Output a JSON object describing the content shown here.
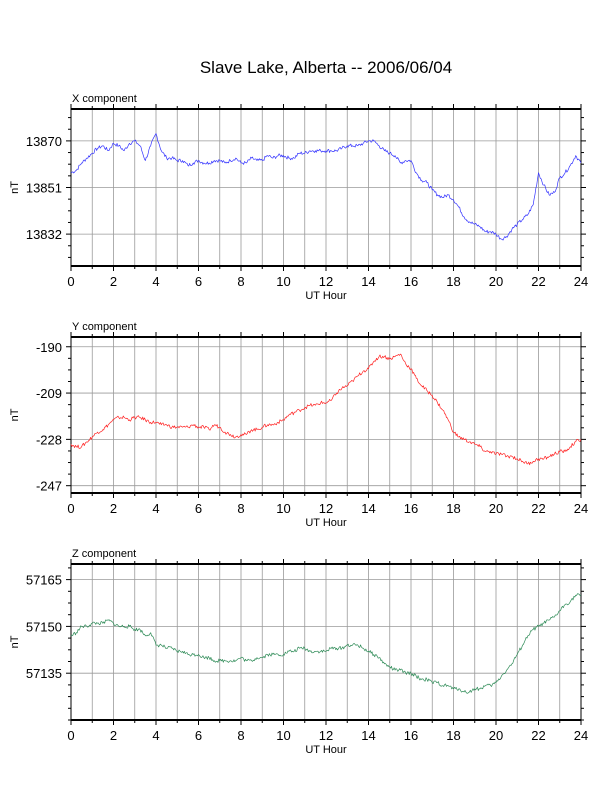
{
  "title": "Slave Lake, Alberta -- 2006/06/04",
  "chart_data": [
    {
      "type": "line",
      "title": "X component",
      "xlabel": "UT Hour",
      "ylabel": "nT",
      "xlim": [
        0,
        24
      ],
      "ylim": [
        13819,
        13883
      ],
      "xticks": [
        0,
        2,
        4,
        6,
        8,
        10,
        12,
        14,
        16,
        18,
        20,
        22,
        24
      ],
      "yticks": [
        13832,
        13851,
        13870
      ],
      "ytick_labels": [
        "13832",
        "13851",
        "13870"
      ],
      "grid": true,
      "color": "#3333ff",
      "series": [
        {
          "x": [
            0,
            0.25,
            0.5,
            0.75,
            1,
            1.25,
            1.5,
            1.75,
            2,
            2.25,
            2.5,
            2.75,
            3,
            3.25,
            3.5,
            3.75,
            4,
            4.25,
            4.5,
            4.75,
            5,
            5.25,
            5.5,
            5.75,
            6,
            6.25,
            6.5,
            6.75,
            7,
            7.25,
            7.5,
            7.75,
            8,
            8.25,
            8.5,
            8.75,
            9,
            9.25,
            9.5,
            9.75,
            10,
            10.25,
            10.5,
            10.75,
            11,
            11.25,
            11.5,
            11.75,
            12,
            12.25,
            12.5,
            12.75,
            13,
            13.25,
            13.5,
            13.75,
            14,
            14.25,
            14.5,
            14.75,
            15,
            15.25,
            15.5,
            15.75,
            16,
            16.25,
            16.5,
            16.75,
            17,
            17.25,
            17.5,
            17.75,
            18,
            18.25,
            18.5,
            18.75,
            19,
            19.25,
            19.5,
            19.75,
            20,
            20.25,
            20.5,
            20.75,
            21,
            21.25,
            21.5,
            21.75,
            22,
            22.25,
            22.5,
            22.75,
            23,
            23.25,
            23.5,
            23.75,
            24
          ],
          "y": [
            13857,
            13858,
            13861,
            13863,
            13865,
            13867,
            13868,
            13866,
            13869,
            13868,
            13866,
            13869,
            13870,
            13868,
            13862,
            13868,
            13873,
            13866,
            13863,
            13863,
            13862,
            13862,
            13860,
            13861,
            13862,
            13861,
            13861,
            13862,
            13862,
            13861,
            13862,
            13863,
            13861,
            13861,
            13863,
            13862,
            13862,
            13864,
            13863,
            13864,
            13864,
            13863,
            13863,
            13865,
            13865,
            13866,
            13866,
            13866,
            13866,
            13866,
            13866,
            13867,
            13868,
            13868,
            13868,
            13869,
            13870,
            13870,
            13868,
            13866,
            13865,
            13864,
            13861,
            13862,
            13862,
            13857,
            13854,
            13853,
            13850,
            13848,
            13847,
            13848,
            13846,
            13843,
            13839,
            13837,
            13836,
            13835,
            13833,
            13833,
            13832,
            13830,
            13831,
            13834,
            13836,
            13838,
            13840,
            13844,
            13857,
            13852,
            13848,
            13849,
            13855,
            13857,
            13860,
            13864,
            13861
          ]
        }
      ]
    },
    {
      "type": "line",
      "title": "Y component",
      "xlabel": "UT Hour",
      "ylabel": "nT",
      "xlim": [
        0,
        24
      ],
      "ylim": [
        -250,
        -186
      ],
      "xticks": [
        0,
        2,
        4,
        6,
        8,
        10,
        12,
        14,
        16,
        18,
        20,
        22,
        24
      ],
      "yticks": [
        -247,
        -228,
        -209,
        -190
      ],
      "ytick_labels": [
        "-247",
        "-228",
        "-209",
        "-190"
      ],
      "grid": true,
      "color": "#ff2020",
      "series": [
        {
          "x": [
            0,
            0.25,
            0.5,
            0.75,
            1,
            1.25,
            1.5,
            1.75,
            2,
            2.25,
            2.5,
            2.75,
            3,
            3.25,
            3.5,
            3.75,
            4,
            4.25,
            4.5,
            4.75,
            5,
            5.25,
            5.5,
            5.75,
            6,
            6.25,
            6.5,
            6.75,
            7,
            7.25,
            7.5,
            7.75,
            8,
            8.25,
            8.5,
            8.75,
            9,
            9.25,
            9.5,
            9.75,
            10,
            10.25,
            10.5,
            10.75,
            11,
            11.25,
            11.5,
            11.75,
            12,
            12.25,
            12.5,
            12.75,
            13,
            13.25,
            13.5,
            13.75,
            14,
            14.25,
            14.5,
            14.75,
            15,
            15.25,
            15.5,
            15.75,
            16,
            16.25,
            16.5,
            16.75,
            17,
            17.25,
            17.5,
            17.75,
            18,
            18.25,
            18.5,
            18.75,
            19,
            19.25,
            19.5,
            19.75,
            20,
            20.25,
            20.5,
            20.75,
            21,
            21.25,
            21.5,
            21.75,
            22,
            22.25,
            22.5,
            22.75,
            23,
            23.25,
            23.5,
            23.75,
            24
          ],
          "y": [
            -230,
            -231,
            -231,
            -229,
            -227,
            -225,
            -224,
            -222,
            -220,
            -219,
            -219,
            -220,
            -219,
            -219,
            -220,
            -221,
            -221,
            -222,
            -222,
            -223,
            -223,
            -223,
            -223,
            -222,
            -223,
            -223,
            -224,
            -222,
            -223,
            -225,
            -226,
            -227,
            -226,
            -226,
            -224,
            -224,
            -223,
            -222,
            -222,
            -221,
            -220,
            -218,
            -217,
            -216,
            -215,
            -214,
            -214,
            -213,
            -213,
            -212,
            -209,
            -207,
            -206,
            -204,
            -202,
            -200,
            -199,
            -196,
            -194,
            -194,
            -195,
            -194,
            -193,
            -197,
            -199,
            -203,
            -206,
            -208,
            -210,
            -213,
            -216,
            -220,
            -225,
            -227,
            -228,
            -229,
            -230,
            -231,
            -233,
            -233,
            -234,
            -234,
            -235,
            -235,
            -236,
            -237,
            -238,
            -237,
            -236,
            -236,
            -235,
            -234,
            -233,
            -233,
            -231,
            -229,
            -228
          ]
        }
      ]
    },
    {
      "type": "line",
      "title": "Z component",
      "xlabel": "UT Hour",
      "ylabel": "nT",
      "xlim": [
        0,
        24
      ],
      "ylim": [
        57120,
        57170
      ],
      "xticks": [
        0,
        2,
        4,
        6,
        8,
        10,
        12,
        14,
        16,
        18,
        20,
        22,
        24
      ],
      "yticks": [
        57135,
        57150,
        57165
      ],
      "ytick_labels": [
        "57135",
        "57150",
        "57165"
      ],
      "grid": true,
      "color": "#2e8b57",
      "series": [
        {
          "x": [
            0,
            0.25,
            0.5,
            0.75,
            1,
            1.25,
            1.5,
            1.75,
            2,
            2.25,
            2.5,
            2.75,
            3,
            3.25,
            3.5,
            3.75,
            4,
            4.25,
            4.5,
            4.75,
            5,
            5.25,
            5.5,
            5.75,
            6,
            6.25,
            6.5,
            6.75,
            7,
            7.25,
            7.5,
            7.75,
            8,
            8.25,
            8.5,
            8.75,
            9,
            9.25,
            9.5,
            9.75,
            10,
            10.25,
            10.5,
            10.75,
            11,
            11.25,
            11.5,
            11.75,
            12,
            12.25,
            12.5,
            12.75,
            13,
            13.25,
            13.5,
            13.75,
            14,
            14.25,
            14.5,
            14.75,
            15,
            15.25,
            15.5,
            15.75,
            16,
            16.25,
            16.5,
            16.75,
            17,
            17.25,
            17.5,
            17.75,
            18,
            18.25,
            18.5,
            18.75,
            19,
            19.25,
            19.5,
            19.75,
            20,
            20.25,
            20.5,
            20.75,
            21,
            21.25,
            21.5,
            21.75,
            22,
            22.25,
            22.5,
            22.75,
            23,
            23.25,
            23.5,
            23.75,
            24
          ],
          "y": [
            57147,
            57148,
            57150,
            57150,
            57151,
            57151,
            57151,
            57152,
            57151,
            57150,
            57150,
            57150,
            57149,
            57149,
            57147,
            57148,
            57144,
            57144,
            57143,
            57143,
            57142,
            57142,
            57141,
            57141,
            57141,
            57140,
            57140,
            57139,
            57139,
            57139,
            57139,
            57139,
            57140,
            57139,
            57139,
            57140,
            57140,
            57141,
            57141,
            57141,
            57141,
            57142,
            57142,
            57143,
            57143,
            57142,
            57142,
            57142,
            57142,
            57143,
            57143,
            57143,
            57144,
            57144,
            57144,
            57143,
            57142,
            57141,
            57140,
            57138,
            57137,
            57136,
            57136,
            57135,
            57135,
            57134,
            57133,
            57133,
            57132,
            57132,
            57131,
            57131,
            57130,
            57130,
            57129,
            57129,
            57130,
            57130,
            57131,
            57131,
            57132,
            57134,
            57136,
            57138,
            57141,
            57144,
            57147,
            57149,
            57150,
            57151,
            57152,
            57153,
            57155,
            57157,
            57158,
            57160,
            57160
          ]
        }
      ]
    }
  ]
}
